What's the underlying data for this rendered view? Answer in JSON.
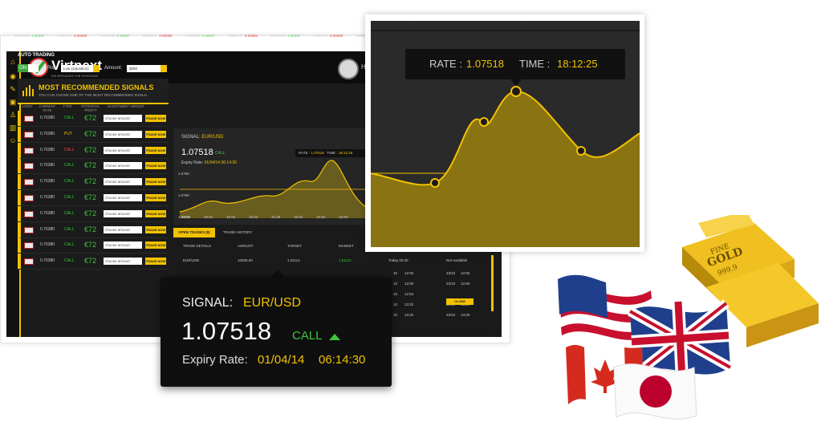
{
  "brand": {
    "name": "Virtnext",
    "tagline": "WE BROADEN THE HORIZONS"
  },
  "user": {
    "greeting": "Hi St"
  },
  "ticker": [
    {
      "pair": "EURUSD",
      "value": "1.34537",
      "dir": "up"
    },
    {
      "pair": "USDCHF",
      "value": "0.90586",
      "dir": "down"
    },
    {
      "pair": "EURUSD",
      "value": "1.34537",
      "dir": "up"
    },
    {
      "pair": "USDCHF",
      "value": "0.90586",
      "dir": "down"
    },
    {
      "pair": "EURUSD",
      "value": "1.34537",
      "dir": "up"
    },
    {
      "pair": "USDCHF",
      "value": "0.90586",
      "dir": "down"
    },
    {
      "pair": "EURUSD",
      "value": "1.34537",
      "dir": "up"
    },
    {
      "pair": "USDCHF",
      "value": "0.90586",
      "dir": "down"
    },
    {
      "pair": "EURUSD",
      "value": "1.34537",
      "dir": "up"
    }
  ],
  "auto_trading": {
    "title": "AUTO TRADING",
    "toggle_on": "ON",
    "risk_label": "Risk:",
    "risk_value": "Low (1/position)",
    "amount_label": "Amount:",
    "amount_value": "$250"
  },
  "signals": {
    "title": "MOST RECOMMENDED SIGNALS",
    "subtitle": "YOU CAN CHOSE ONE OF THE MOST RECOMMENDED SIGNAL",
    "columns": [
      "ASSET",
      "CURRENT RATE",
      "TYPE",
      "POTENTIAL PROFIT",
      "INVESTMENT AMOUNT"
    ],
    "amount_placeholder": "choose amount",
    "trade_label": "TRADE NOW",
    "rows": [
      {
        "rate": "0.76380",
        "type": "CALL",
        "profit": "€72"
      },
      {
        "rate": "0.76380",
        "type": "PUT",
        "profit": "€72"
      },
      {
        "rate": "0.76380",
        "type": "CALL",
        "profit": "€72"
      },
      {
        "rate": "0.76380",
        "type": "CALL",
        "profit": "€72"
      },
      {
        "rate": "0.76380",
        "type": "CALL",
        "profit": "€72"
      },
      {
        "rate": "0.76380",
        "type": "CALL",
        "profit": "€72"
      },
      {
        "rate": "0.76380",
        "type": "CALL",
        "profit": "€72"
      },
      {
        "rate": "0.76380",
        "type": "CALL",
        "profit": "€72"
      },
      {
        "rate": "0.76380",
        "type": "CALL",
        "profit": "€72"
      },
      {
        "rate": "0.76380",
        "type": "CALL",
        "profit": "€72"
      }
    ]
  },
  "mini_chart": {
    "signal_label": "SIGNAL:",
    "signal_value": "EUR/USD",
    "rate": "1.07518",
    "direction": "CALL",
    "expiry_label": "Expiry Rate:",
    "expiry_date": "01/04/14",
    "expiry_time": "06:14:30",
    "tip_rate_label": "RATE :",
    "tip_rate": "1.07518",
    "tip_time_label": "TIME :",
    "tip_time": "18:12:25",
    "y_ticks": [
      "1.0760",
      "1.0750",
      "1.0740"
    ],
    "x_ticks": [
      "15.49",
      "15.51",
      "15.52",
      "15.53",
      "15.49",
      "15.51",
      "15.52",
      "15.53"
    ]
  },
  "trades": {
    "tabs": [
      "OPEN TRADES (8)",
      "TRADE HISTORY"
    ],
    "columns": [
      "TRADE DETAILS",
      "AMOUNT",
      "TARGET",
      "MARKET"
    ],
    "first_row": {
      "asset": "EUR/USD",
      "amount": "10000.00",
      "target": "1.51112",
      "market": "1.51112",
      "date": "Today 20:30",
      "status": "Not Available"
    },
    "other_rows": [
      {
        "date": "10",
        "time": "12:50",
        "date2": "23/10",
        "time2": "12:50"
      },
      {
        "date": "10",
        "time": "12:50",
        "date2": "23/10",
        "time2": "12:50"
      },
      {
        "date": "10",
        "time": "12:54"
      },
      {
        "date": "10",
        "time": "13:20",
        "date2": "22/10",
        "time2": "13:20"
      },
      {
        "date": "10",
        "time": "13:20",
        "date2": "22/10",
        "time2": "13:20"
      }
    ],
    "close_label": "CLOSE"
  },
  "zoom_tooltip": {
    "rate_label": "RATE :",
    "rate_value": "1.07518",
    "time_label": "TIME :",
    "time_value": "18:12:25"
  },
  "gold_bar": {
    "line1": "FINE",
    "line2": "GOLD",
    "line3": "999.9"
  },
  "colors": {
    "accent": "#f2c200",
    "up": "#3fc43f",
    "down": "#f24a4a",
    "panel": "#1b1b1b"
  }
}
